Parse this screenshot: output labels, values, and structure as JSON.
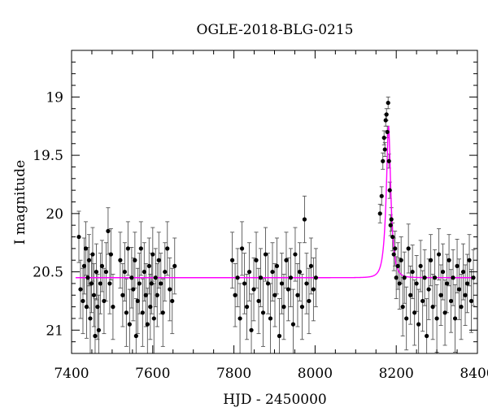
{
  "chart_data": {
    "type": "scatter",
    "title": "OGLE-2018-BLG-0215",
    "xlabel": "HJD - 2450000",
    "ylabel": "I magnitude",
    "xlim": [
      7400,
      8400
    ],
    "ylim": [
      21.2,
      18.6
    ],
    "y_inverted": true,
    "x_ticks": [
      7400,
      7600,
      7800,
      8000,
      8200,
      8400
    ],
    "x_tick_labels": [
      "7400",
      "7600",
      "7800",
      "8000",
      "8200",
      "8400"
    ],
    "y_ticks": [
      19,
      19.5,
      20,
      20.5,
      21
    ],
    "y_tick_labels": [
      "19",
      "19.5",
      "20",
      "20.5",
      "21"
    ],
    "grid": false,
    "legend": "none",
    "colors": {
      "data": "#000000",
      "model": "#ff00ff"
    },
    "model_curve": {
      "type": "paczynski",
      "baseline": 20.55,
      "peak_mag": 19.25,
      "t0": 8181,
      "tE": 12,
      "x_range": [
        7410,
        8395
      ]
    },
    "series": [
      {
        "name": "",
        "x": [
          7418,
          7422,
          7428,
          7431,
          7435,
          7437,
          7440,
          7443,
          7446,
          7449,
          7452,
          7455,
          7458,
          7461,
          7464,
          7467,
          7471,
          7475,
          7480,
          7485,
          7490,
          7494,
          7497,
          7502,
          7520,
          7526,
          7531,
          7535,
          7539,
          7543,
          7548,
          7552,
          7556,
          7559,
          7563,
          7567,
          7571,
          7575,
          7579,
          7583,
          7587,
          7591,
          7594,
          7597,
          7600,
          7603,
          7607,
          7611,
          7615,
          7620,
          7625,
          7630,
          7636,
          7642,
          7648,
          7654,
          7796,
          7803,
          7809,
          7815,
          7820,
          7826,
          7832,
          7838,
          7843,
          7849,
          7855,
          7861,
          7866,
          7872,
          7878,
          7884,
          7890,
          7895,
          7901,
          7906,
          7912,
          7918,
          7923,
          7929,
          7934,
          7940,
          7946,
          7951,
          7957,
          7962,
          7968,
          7974,
          7979,
          7985,
          7990,
          7996,
          8002,
          8160,
          8164,
          8167,
          8170,
          8172,
          8174,
          8176,
          8178,
          8180,
          8182,
          8184,
          8186,
          8188,
          8191,
          8194,
          8197,
          8200,
          8204,
          8208,
          8212,
          8216,
          8220,
          8225,
          8230,
          8235,
          8240,
          8245,
          8250,
          8255,
          8260,
          8265,
          8270,
          8275,
          8280,
          8285,
          8290,
          8295,
          8300,
          8305,
          8310,
          8315,
          8320,
          8325,
          8330,
          8335,
          8340,
          8345,
          8350,
          8355,
          8360,
          8365,
          8370,
          8375,
          8380,
          8385,
          8390
        ],
        "y": [
          20.2,
          20.65,
          20.75,
          20.45,
          20.3,
          20.8,
          20.55,
          20.4,
          20.9,
          20.6,
          20.35,
          20.7,
          21.05,
          20.5,
          20.8,
          21.0,
          20.6,
          20.45,
          20.75,
          20.5,
          20.15,
          20.6,
          20.35,
          20.8,
          20.4,
          20.7,
          20.5,
          20.85,
          20.3,
          20.95,
          20.55,
          20.65,
          20.4,
          21.05,
          20.75,
          20.6,
          20.3,
          20.85,
          20.5,
          20.7,
          20.95,
          20.45,
          20.8,
          20.6,
          20.35,
          20.9,
          20.55,
          20.7,
          20.4,
          20.6,
          20.85,
          20.5,
          20.3,
          20.65,
          20.75,
          20.45,
          20.4,
          20.7,
          20.55,
          20.9,
          20.3,
          20.6,
          20.8,
          20.5,
          21.0,
          20.65,
          20.4,
          20.75,
          20.55,
          20.85,
          20.35,
          20.6,
          20.9,
          20.5,
          20.7,
          20.45,
          21.05,
          20.6,
          20.8,
          20.4,
          20.65,
          20.55,
          20.95,
          20.35,
          20.7,
          20.5,
          20.8,
          20.05,
          20.6,
          20.75,
          20.45,
          20.65,
          20.55,
          20.0,
          19.85,
          19.55,
          19.35,
          19.45,
          19.2,
          19.15,
          19.3,
          19.05,
          19.55,
          19.8,
          20.1,
          20.05,
          20.2,
          20.35,
          20.3,
          20.55,
          20.45,
          20.6,
          20.4,
          20.8,
          20.55,
          20.9,
          20.3,
          20.7,
          20.5,
          20.85,
          20.6,
          20.95,
          20.45,
          20.75,
          20.55,
          21.05,
          20.65,
          20.4,
          20.8,
          20.55,
          20.9,
          20.35,
          20.7,
          20.5,
          20.85,
          20.6,
          20.4,
          20.75,
          20.55,
          20.9,
          20.45,
          20.65,
          20.8,
          20.5,
          20.7,
          20.6,
          20.4,
          20.75,
          20.55
        ],
        "err": [
          0.22,
          0.25,
          0.28,
          0.24,
          0.23,
          0.27,
          0.26,
          0.22,
          0.3,
          0.25,
          0.23,
          0.27,
          0.32,
          0.24,
          0.28,
          0.3,
          0.26,
          0.22,
          0.28,
          0.25,
          0.2,
          0.26,
          0.22,
          0.28,
          0.24,
          0.27,
          0.25,
          0.29,
          0.23,
          0.3,
          0.26,
          0.27,
          0.24,
          0.32,
          0.28,
          0.26,
          0.23,
          0.29,
          0.25,
          0.27,
          0.31,
          0.24,
          0.28,
          0.26,
          0.23,
          0.3,
          0.25,
          0.27,
          0.24,
          0.26,
          0.29,
          0.25,
          0.23,
          0.27,
          0.28,
          0.24,
          0.24,
          0.27,
          0.25,
          0.3,
          0.23,
          0.26,
          0.28,
          0.25,
          0.31,
          0.27,
          0.24,
          0.28,
          0.25,
          0.29,
          0.23,
          0.26,
          0.3,
          0.25,
          0.27,
          0.24,
          0.32,
          0.26,
          0.28,
          0.24,
          0.27,
          0.25,
          0.3,
          0.23,
          0.27,
          0.25,
          0.28,
          0.2,
          0.26,
          0.28,
          0.24,
          0.27,
          0.25,
          0.08,
          0.08,
          0.07,
          0.06,
          0.06,
          0.05,
          0.05,
          0.05,
          0.05,
          0.06,
          0.07,
          0.09,
          0.1,
          0.12,
          0.14,
          0.15,
          0.18,
          0.2,
          0.22,
          0.2,
          0.25,
          0.22,
          0.27,
          0.21,
          0.25,
          0.23,
          0.28,
          0.24,
          0.3,
          0.22,
          0.26,
          0.24,
          0.32,
          0.26,
          0.22,
          0.28,
          0.24,
          0.29,
          0.22,
          0.26,
          0.24,
          0.28,
          0.25,
          0.22,
          0.27,
          0.24,
          0.29,
          0.23,
          0.26,
          0.28,
          0.24,
          0.26,
          0.25,
          0.22,
          0.27,
          0.24
        ]
      }
    ]
  }
}
